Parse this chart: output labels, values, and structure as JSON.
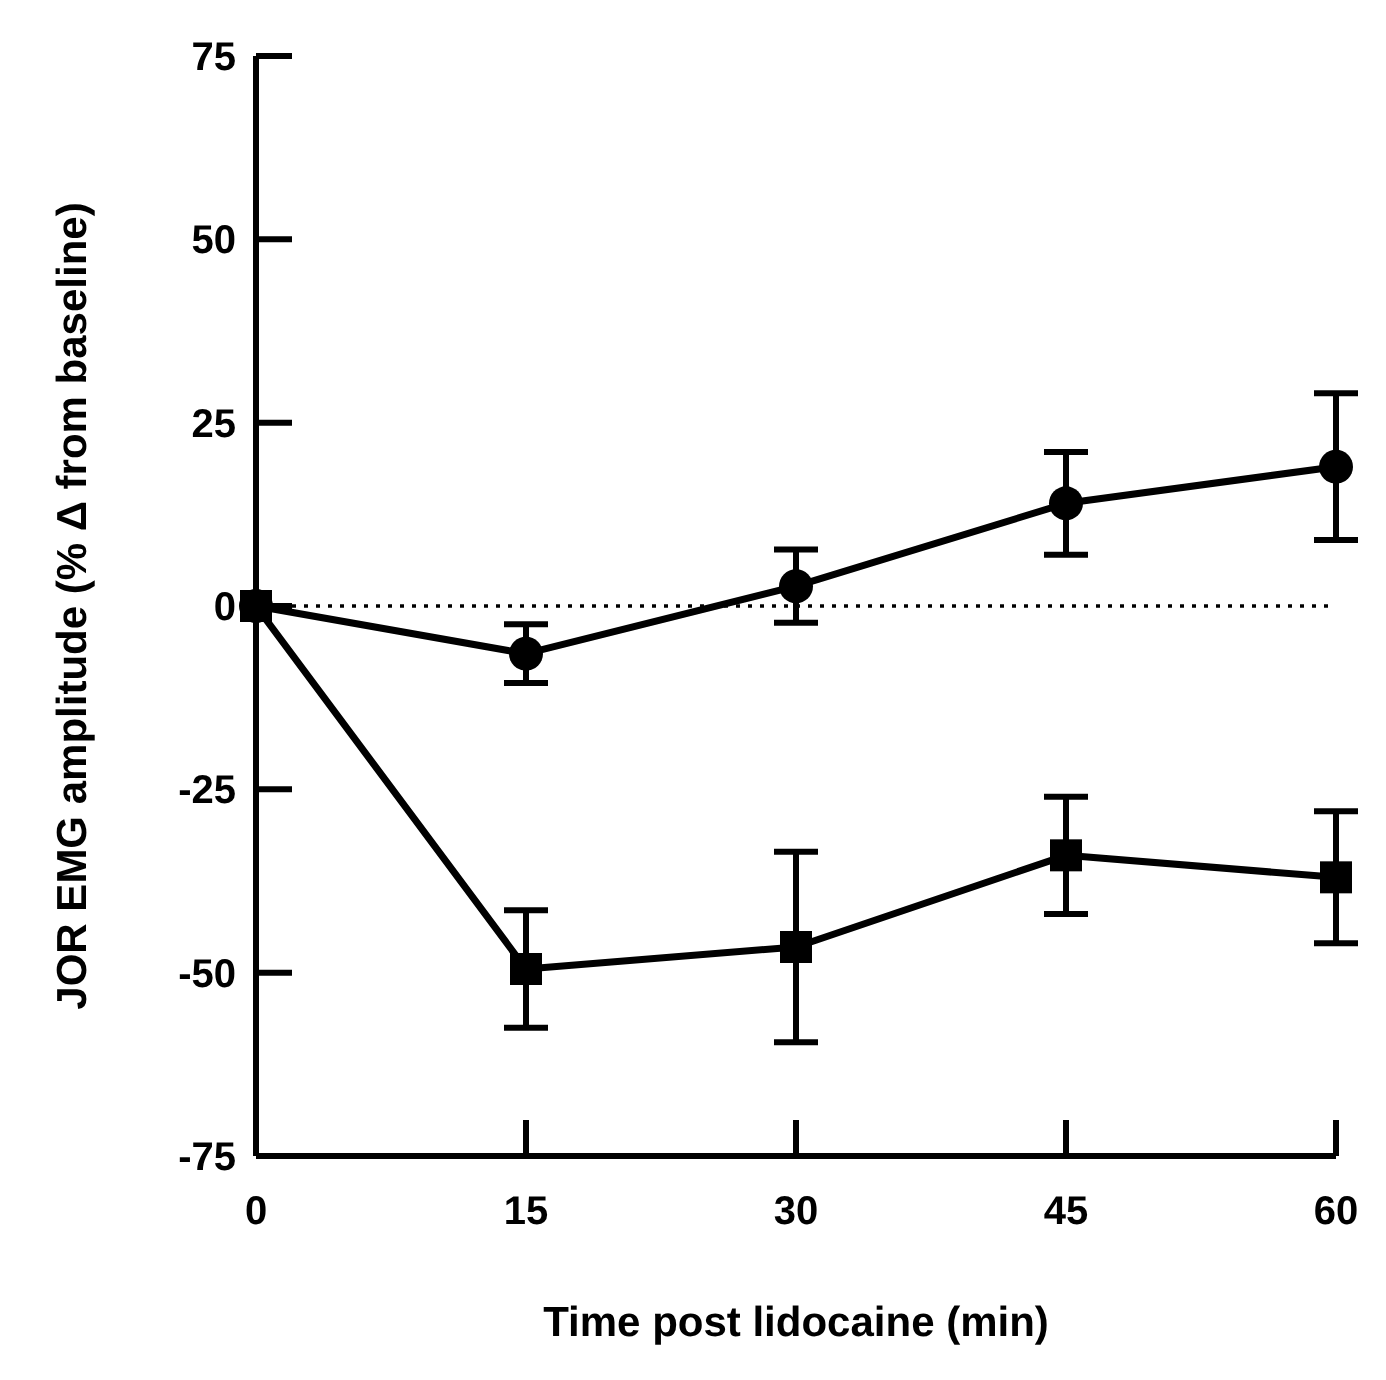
{
  "chart_data": {
    "type": "line",
    "xlabel": "Time post lidocaine (min)",
    "ylabel": "JOR EMG amplitude (% Δ from baseline)",
    "x": [
      0,
      15,
      30,
      45,
      60
    ],
    "series": [
      {
        "color": "#000000",
        "marker": "circle",
        "values": [
          0,
          -6.5,
          2.7,
          14,
          19
        ],
        "errors": [
          null,
          4,
          5,
          7,
          10
        ]
      },
      {
        "color": "#000000",
        "marker": "square",
        "values": [
          0,
          -49.5,
          -46.5,
          -34,
          -37
        ],
        "errors": [
          null,
          8,
          13,
          8,
          9
        ]
      }
    ],
    "xlim": [
      0,
      60
    ],
    "xticks": [
      0,
      15,
      30,
      45,
      60
    ],
    "ylim": [
      -75,
      75
    ],
    "yticks": [
      -75,
      -50,
      -25,
      0,
      25,
      50,
      75
    ],
    "ref_lines": [
      {
        "axis": "y",
        "value": 0,
        "line_style": "dotted"
      }
    ],
    "grid": false,
    "line_style": "solid"
  }
}
